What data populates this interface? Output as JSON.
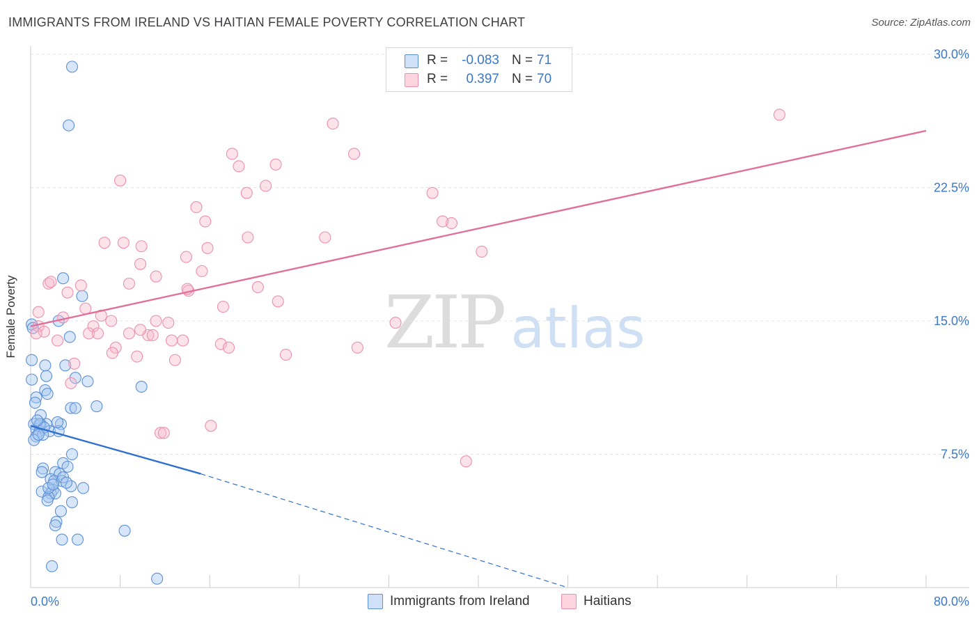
{
  "title": "IMMIGRANTS FROM IRELAND VS HAITIAN FEMALE POVERTY CORRELATION CHART",
  "source": "Source: ZipAtlas.com",
  "watermark": {
    "part1": "ZIP",
    "part2": "atlas"
  },
  "stats": [
    {
      "r_label": "R =",
      "r_value": "-0.083",
      "n_label": "N =",
      "n_value": "71",
      "color": "#a7c7ef"
    },
    {
      "r_label": "R =",
      "r_value": "0.397",
      "n_label": "N =",
      "n_value": "70",
      "color": "#f7b8cb"
    }
  ],
  "legend": [
    {
      "label": "Immigrants from Ireland",
      "color": "#a7c7ef"
    },
    {
      "label": "Haitians",
      "color": "#f7b8cb"
    }
  ],
  "chart_data": {
    "type": "scatter",
    "ylabel": "Female Poverty",
    "xlim": [
      0,
      80
    ],
    "ylim": [
      0,
      30
    ],
    "y_ticks": [
      {
        "value": 7.5,
        "label": "7.5%"
      },
      {
        "value": 15,
        "label": "15.0%"
      },
      {
        "value": 22.5,
        "label": "22.5%"
      },
      {
        "value": 30,
        "label": "30.0%"
      }
    ],
    "x_tick_values": [
      0,
      8,
      16,
      24,
      32,
      40,
      48,
      56,
      64,
      72,
      80
    ],
    "x_tick_labels": [
      {
        "value": 0,
        "label": "0.0%"
      },
      {
        "value": 80,
        "label": "80.0%"
      }
    ],
    "series": [
      {
        "name": "Immigrants from Ireland",
        "stroke": "#5b8fd6",
        "fill": "rgba(167,199,239,0.45)",
        "trend": {
          "x0": 0,
          "y0": 9.1,
          "x1": 15.2,
          "y1": 6.4,
          "dash_to_x": 48,
          "dash_to_y": 0
        },
        "points": [
          [
            3.7,
            29.3
          ],
          [
            3.4,
            26.0
          ],
          [
            2.9,
            17.4
          ],
          [
            4.6,
            16.4
          ],
          [
            2.5,
            15.0
          ],
          [
            0.1,
            14.8
          ],
          [
            0.2,
            14.6
          ],
          [
            3.5,
            14.1
          ],
          [
            0.1,
            12.8
          ],
          [
            1.3,
            12.5
          ],
          [
            3.1,
            12.5
          ],
          [
            0.1,
            11.7
          ],
          [
            5.1,
            11.6
          ],
          [
            1.4,
            11.9
          ],
          [
            4.0,
            11.8
          ],
          [
            9.9,
            11.3
          ],
          [
            1.3,
            11.1
          ],
          [
            1.5,
            10.9
          ],
          [
            0.5,
            10.7
          ],
          [
            0.4,
            10.4
          ],
          [
            3.6,
            10.1
          ],
          [
            4.0,
            10.1
          ],
          [
            5.9,
            10.2
          ],
          [
            0.9,
            9.7
          ],
          [
            0.3,
            9.2
          ],
          [
            0.9,
            9.2
          ],
          [
            1.4,
            9.2
          ],
          [
            2.7,
            9.2
          ],
          [
            0.5,
            8.9
          ],
          [
            0.8,
            8.8
          ],
          [
            1.7,
            8.8
          ],
          [
            2.5,
            8.8
          ],
          [
            0.5,
            8.5
          ],
          [
            0.3,
            8.3
          ],
          [
            3.7,
            7.5
          ],
          [
            2.9,
            7.0
          ],
          [
            1.1,
            6.7
          ],
          [
            3.3,
            6.8
          ],
          [
            1.0,
            6.5
          ],
          [
            2.2,
            6.5
          ],
          [
            2.6,
            6.4
          ],
          [
            1.8,
            6.1
          ],
          [
            2.1,
            6.0
          ],
          [
            2.8,
            6.0
          ],
          [
            3.6,
            5.7
          ],
          [
            4.7,
            5.6
          ],
          [
            1.0,
            5.4
          ],
          [
            2.0,
            5.5
          ],
          [
            1.8,
            5.3
          ],
          [
            2.2,
            5.3
          ],
          [
            1.6,
            5.1
          ],
          [
            1.5,
            4.9
          ],
          [
            3.7,
            4.8
          ],
          [
            2.7,
            4.3
          ],
          [
            2.3,
            3.7
          ],
          [
            2.2,
            3.5
          ],
          [
            8.4,
            3.2
          ],
          [
            2.8,
            2.7
          ],
          [
            4.2,
            2.7
          ],
          [
            1.9,
            1.2
          ],
          [
            11.3,
            0.5
          ],
          [
            0.8,
            9.2
          ],
          [
            1.2,
            9.0
          ],
          [
            0.6,
            9.4
          ],
          [
            1.1,
            8.6
          ],
          [
            2.4,
            9.3
          ],
          [
            2.9,
            6.2
          ],
          [
            1.6,
            5.6
          ],
          [
            3.2,
            5.9
          ],
          [
            0.7,
            8.6
          ],
          [
            2.0,
            5.8
          ]
        ]
      },
      {
        "name": "Haitians",
        "stroke": "#ec8fac",
        "fill": "rgba(247,184,203,0.40)",
        "trend": {
          "x0": 0,
          "y0": 14.7,
          "x1": 80,
          "y1": 25.7
        },
        "points": [
          [
            66.9,
            26.6
          ],
          [
            27.0,
            26.1
          ],
          [
            18.0,
            24.4
          ],
          [
            28.9,
            24.4
          ],
          [
            18.6,
            23.7
          ],
          [
            21.9,
            23.8
          ],
          [
            8.0,
            22.9
          ],
          [
            21.0,
            22.6
          ],
          [
            19.3,
            22.2
          ],
          [
            35.9,
            22.2
          ],
          [
            14.8,
            21.4
          ],
          [
            15.6,
            20.6
          ],
          [
            37.6,
            20.5
          ],
          [
            36.8,
            20.6
          ],
          [
            6.6,
            19.4
          ],
          [
            8.3,
            19.4
          ],
          [
            19.4,
            19.7
          ],
          [
            26.3,
            19.7
          ],
          [
            9.9,
            19.2
          ],
          [
            15.8,
            19.1
          ],
          [
            40.3,
            18.9
          ],
          [
            13.9,
            18.6
          ],
          [
            9.8,
            18.2
          ],
          [
            15.3,
            17.8
          ],
          [
            11.2,
            17.5
          ],
          [
            1.6,
            17.1
          ],
          [
            1.8,
            17.2
          ],
          [
            8.8,
            17.1
          ],
          [
            4.5,
            17.0
          ],
          [
            20.3,
            16.9
          ],
          [
            14.1,
            16.7
          ],
          [
            3.3,
            16.6
          ],
          [
            22.1,
            16.1
          ],
          [
            4.9,
            15.7
          ],
          [
            17.2,
            15.8
          ],
          [
            0.7,
            15.5
          ],
          [
            6.3,
            15.3
          ],
          [
            2.9,
            15.2
          ],
          [
            7.2,
            15.0
          ],
          [
            11.2,
            15.0
          ],
          [
            12.3,
            14.9
          ],
          [
            0.7,
            14.7
          ],
          [
            5.6,
            14.7
          ],
          [
            32.6,
            14.9
          ],
          [
            1.2,
            14.4
          ],
          [
            0.5,
            14.3
          ],
          [
            5.2,
            14.3
          ],
          [
            6.0,
            14.3
          ],
          [
            8.8,
            14.3
          ],
          [
            10.5,
            14.2
          ],
          [
            10.9,
            14.2
          ],
          [
            12.6,
            13.9
          ],
          [
            13.6,
            13.9
          ],
          [
            2.4,
            13.9
          ],
          [
            17.0,
            13.7
          ],
          [
            17.7,
            13.5
          ],
          [
            29.2,
            13.5
          ],
          [
            7.6,
            13.5
          ],
          [
            7.3,
            13.2
          ],
          [
            22.8,
            13.1
          ],
          [
            9.5,
            13.0
          ],
          [
            12.9,
            12.8
          ],
          [
            3.9,
            12.6
          ],
          [
            3.6,
            11.5
          ],
          [
            11.6,
            8.7
          ],
          [
            11.9,
            8.7
          ],
          [
            16.1,
            9.1
          ],
          [
            38.9,
            7.1
          ],
          [
            9.8,
            14.5
          ],
          [
            14.0,
            16.8
          ]
        ]
      }
    ]
  }
}
